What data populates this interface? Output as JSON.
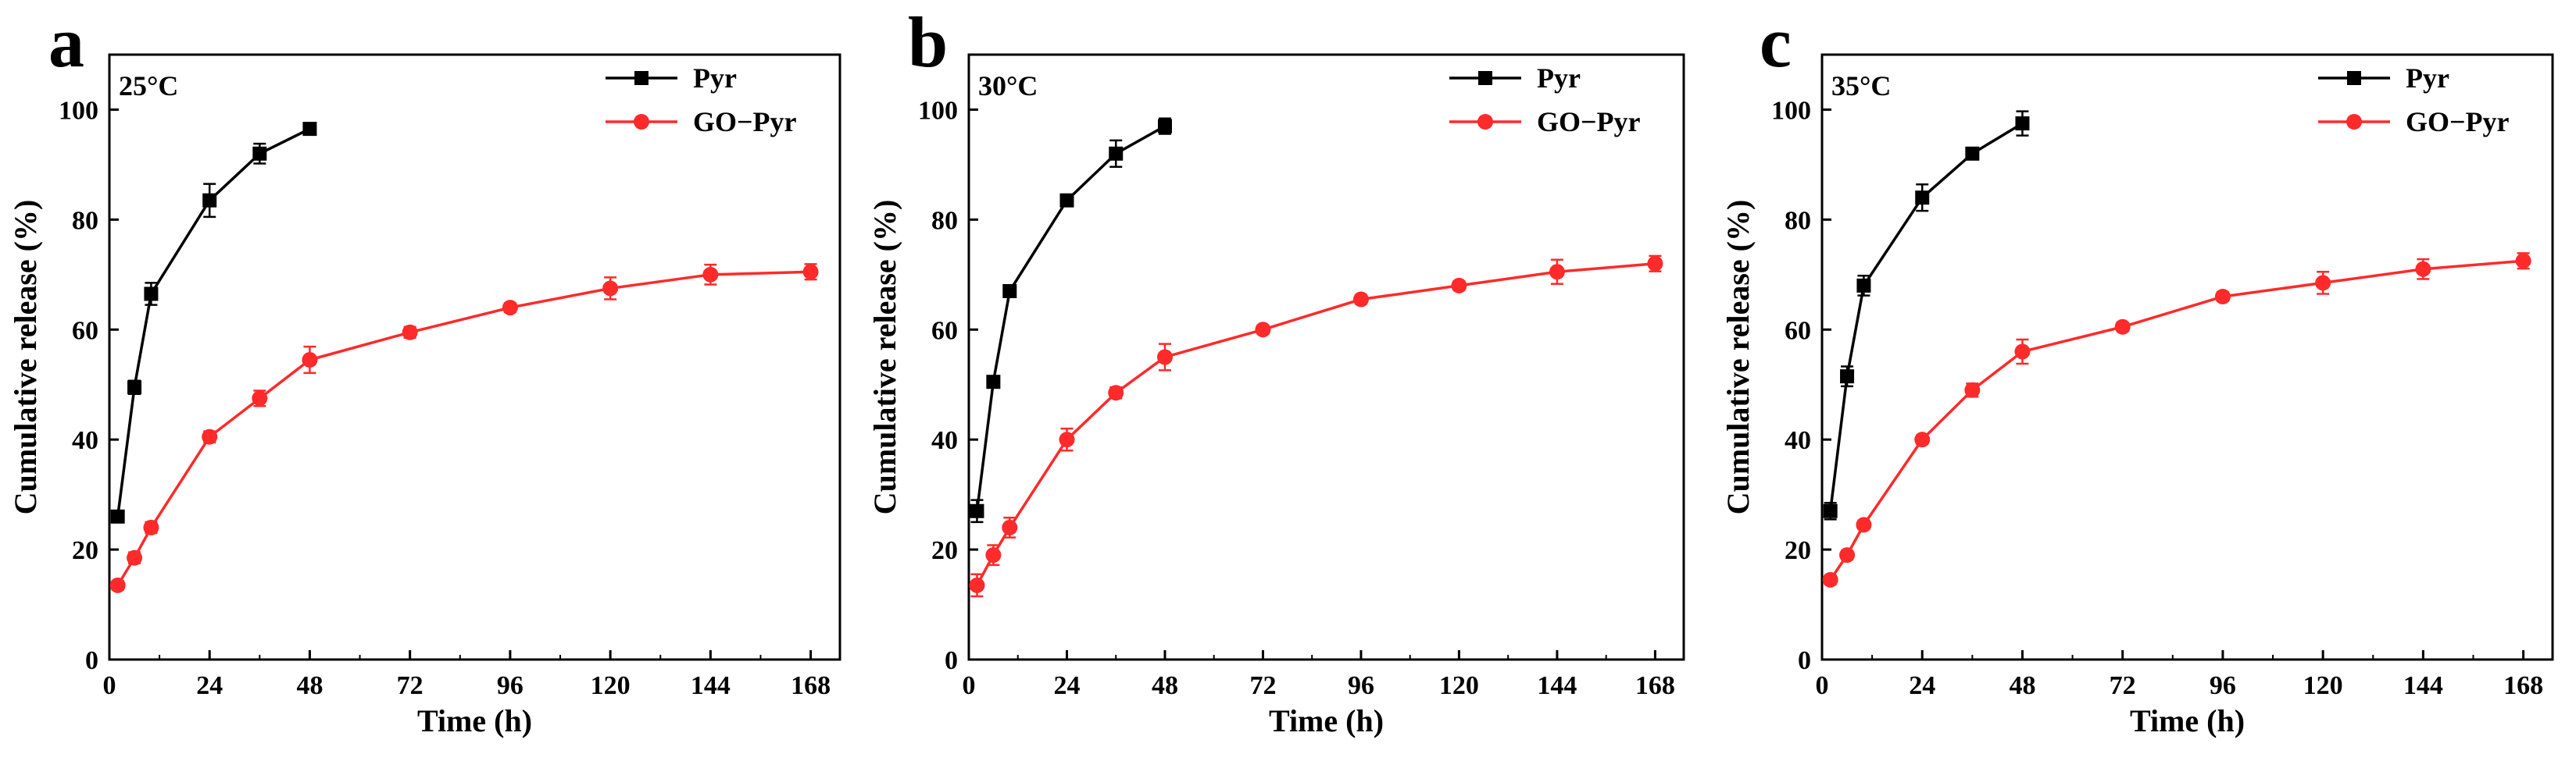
{
  "chart_data": [
    {
      "type": "line",
      "panel": "a",
      "temperature": "25°C",
      "xlabel": "Time (h)",
      "ylabel": "Cumulative release (%)",
      "xlim": [
        0,
        175
      ],
      "ylim": [
        0,
        110
      ],
      "xticks": [
        0,
        24,
        48,
        72,
        96,
        120,
        144,
        168
      ],
      "yticks": [
        0,
        20,
        40,
        60,
        80,
        100
      ],
      "legend_position": "top-right",
      "series": [
        {
          "name": "Pyr",
          "color": "#000000",
          "marker": "square",
          "x": [
            2,
            6,
            10,
            24,
            36,
            48
          ],
          "y": [
            26,
            49.5,
            66.5,
            83.5,
            92,
            96.5
          ],
          "err": [
            0.8,
            1.2,
            2.0,
            3.0,
            1.8,
            0.8
          ]
        },
        {
          "name": "GO−Pyr",
          "color": "#ff2a2a",
          "marker": "circle",
          "x": [
            2,
            6,
            10,
            24,
            36,
            48,
            72,
            96,
            120,
            144,
            168
          ],
          "y": [
            13.5,
            18.5,
            24,
            40.5,
            47.5,
            54.5,
            59.5,
            64,
            67.5,
            70,
            70.5
          ],
          "err": [
            0.8,
            1.0,
            1.0,
            1.0,
            1.4,
            2.4,
            1.0,
            0.8,
            2.0,
            1.8,
            1.4
          ]
        }
      ]
    },
    {
      "type": "line",
      "panel": "b",
      "temperature": "30°C",
      "xlabel": "Time (h)",
      "ylabel": "Cumulative release (%)",
      "xlim": [
        0,
        175
      ],
      "ylim": [
        0,
        110
      ],
      "xticks": [
        0,
        24,
        48,
        72,
        96,
        120,
        144,
        168
      ],
      "yticks": [
        0,
        20,
        40,
        60,
        80,
        100
      ],
      "legend_position": "top-right",
      "series": [
        {
          "name": "Pyr",
          "color": "#000000",
          "marker": "square",
          "x": [
            2,
            6,
            10,
            24,
            36,
            48
          ],
          "y": [
            27,
            50.5,
            67,
            83.5,
            92,
            97
          ],
          "err": [
            2.0,
            1.0,
            1.0,
            0.8,
            2.4,
            1.4
          ]
        },
        {
          "name": "GO−Pyr",
          "color": "#ff2a2a",
          "marker": "circle",
          "x": [
            2,
            6,
            10,
            24,
            36,
            48,
            72,
            96,
            120,
            144,
            168
          ],
          "y": [
            13.5,
            19,
            24,
            40,
            48.5,
            55,
            60,
            65.5,
            68,
            70.5,
            72
          ],
          "err": [
            2.0,
            1.8,
            1.8,
            2.0,
            1.0,
            2.4,
            0.8,
            0.8,
            0.8,
            2.2,
            1.4
          ]
        }
      ]
    },
    {
      "type": "line",
      "panel": "c",
      "temperature": "35°C",
      "xlabel": "Time (h)",
      "ylabel": "Cumulative release (%)",
      "xlim": [
        0,
        175
      ],
      "ylim": [
        0,
        110
      ],
      "xticks": [
        0,
        24,
        48,
        72,
        96,
        120,
        144,
        168
      ],
      "yticks": [
        0,
        20,
        40,
        60,
        80,
        100
      ],
      "legend_position": "top-right",
      "series": [
        {
          "name": "Pyr",
          "color": "#000000",
          "marker": "square",
          "x": [
            2,
            6,
            10,
            24,
            36,
            48
          ],
          "y": [
            27,
            51.5,
            68,
            84,
            92,
            97.5
          ],
          "err": [
            1.5,
            1.8,
            1.8,
            2.4,
            0.8,
            2.2
          ]
        },
        {
          "name": "GO−Pyr",
          "color": "#ff2a2a",
          "marker": "circle",
          "x": [
            2,
            6,
            10,
            24,
            36,
            48,
            72,
            96,
            120,
            144,
            168
          ],
          "y": [
            14.5,
            19,
            24.5,
            40,
            49,
            56,
            60.5,
            66,
            68.5,
            71,
            72.5
          ],
          "err": [
            0.8,
            0.8,
            0.8,
            0.8,
            1.2,
            2.2,
            0.8,
            0.8,
            2.0,
            1.8,
            1.4
          ]
        }
      ]
    }
  ]
}
